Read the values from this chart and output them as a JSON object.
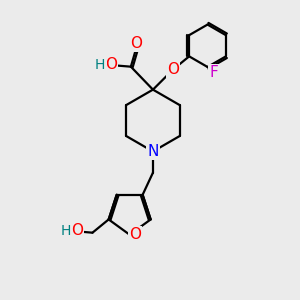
{
  "bg_color": "#ebebeb",
  "bond_color": "#000000",
  "bond_width": 1.6,
  "atom_colors": {
    "O": "#ff0000",
    "N": "#0000ff",
    "F": "#cc00cc",
    "HO": "#008080",
    "C": "#000000"
  }
}
